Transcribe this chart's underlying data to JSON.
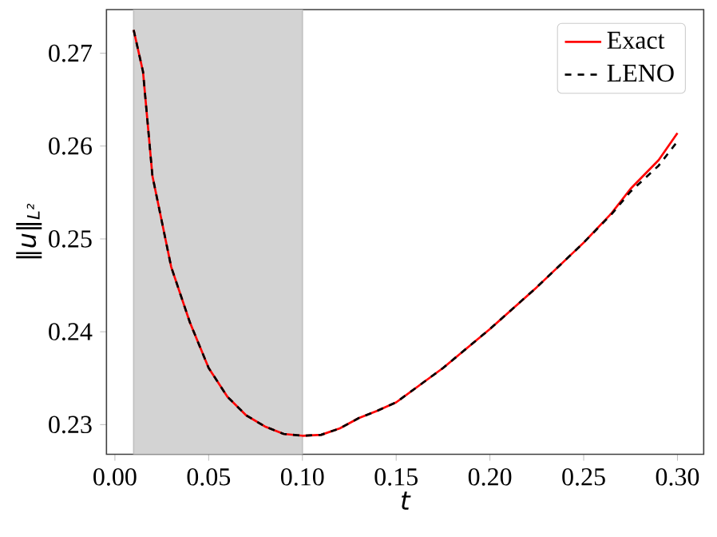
{
  "chart_data": {
    "type": "line",
    "xlabel": "t",
    "ylabel": "‖u‖$_{L²}$",
    "x": [
      0.01,
      0.015,
      0.02,
      0.03,
      0.04,
      0.05,
      0.06,
      0.07,
      0.08,
      0.09,
      0.1,
      0.11,
      0.12,
      0.13,
      0.14,
      0.15,
      0.175,
      0.2,
      0.225,
      0.25,
      0.265,
      0.275,
      0.29,
      0.3
    ],
    "series": [
      {
        "name": "Exact",
        "color": "#ff0000",
        "line_style": "solid",
        "values": [
          0.2725,
          0.268,
          0.2568,
          0.247,
          0.241,
          0.2361,
          0.233,
          0.231,
          0.2298,
          0.229,
          0.2288,
          0.2289,
          0.2296,
          0.2307,
          0.2315,
          0.2324,
          0.2361,
          0.2403,
          0.2448,
          0.2496,
          0.2528,
          0.2554,
          0.2585,
          0.2614
        ]
      },
      {
        "name": "LENO",
        "color": "#000000",
        "line_style": "dashed",
        "values": [
          0.2725,
          0.268,
          0.2568,
          0.247,
          0.241,
          0.2361,
          0.233,
          0.231,
          0.2298,
          0.229,
          0.2288,
          0.2289,
          0.2296,
          0.2307,
          0.2315,
          0.2324,
          0.2361,
          0.2403,
          0.2448,
          0.2496,
          0.2527,
          0.2551,
          0.2579,
          0.2605
        ]
      }
    ],
    "bands": [
      {
        "axis": "x",
        "from": 0.01,
        "to": 0.1,
        "color": "#d3d3d3"
      }
    ],
    "xlim": [
      -0.0045,
      0.314
    ],
    "ylim": [
      0.2268,
      0.2747
    ],
    "xticks": [
      {
        "value": 0,
        "label": "0.00"
      },
      0.05,
      {
        "value": 0.1,
        "label": "0.10"
      },
      0.15,
      {
        "value": 0.2,
        "label": "0.20"
      },
      0.25,
      {
        "value": 0.3,
        "label": "0.30"
      }
    ],
    "yticks": [
      0.23,
      0.24,
      0.25,
      0.26,
      0.27
    ],
    "legend": "top right",
    "grid": false
  }
}
